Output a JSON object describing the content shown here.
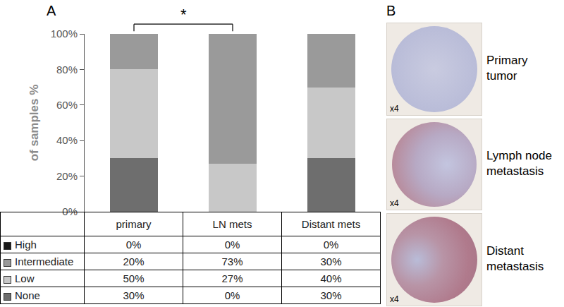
{
  "chart_data": {
    "type": "bar",
    "stacked": true,
    "categories": [
      "primary",
      "LN mets",
      "Distant mets"
    ],
    "series": [
      {
        "name": "High",
        "color": "#1a1a1a",
        "values": [
          0,
          0,
          0
        ],
        "value_labels": [
          "0%",
          "0%",
          "0%"
        ]
      },
      {
        "name": "Intermediate",
        "color": "#9a9a9a",
        "values": [
          20,
          73,
          30
        ],
        "value_labels": [
          "20%",
          "73%",
          "30%"
        ]
      },
      {
        "name": "Low",
        "color": "#c8c8c8",
        "values": [
          50,
          27,
          40
        ],
        "value_labels": [
          "50%",
          "27%",
          "40%"
        ]
      },
      {
        "name": "None",
        "color": "#6e6e6e",
        "values": [
          30,
          0,
          30
        ],
        "value_labels": [
          "30%",
          "0%",
          "30%"
        ]
      }
    ],
    "y_label": "of samples %",
    "ylim": [
      0,
      100
    ],
    "yticks": [
      {
        "value": 0,
        "label": "0%"
      },
      {
        "value": 20,
        "label": "20%"
      },
      {
        "value": 40,
        "label": "40%"
      },
      {
        "value": 60,
        "label": "60%"
      },
      {
        "value": 80,
        "label": "80%"
      },
      {
        "value": 100,
        "label": "100%"
      }
    ],
    "tick_labels": "y",
    "grid": false,
    "annotations": [
      {
        "text": "*",
        "from": "primary",
        "to": "LN mets"
      }
    ],
    "panel_label": "A"
  },
  "panel_b": {
    "panel_label": "B",
    "images": [
      {
        "label": "Primary tumor",
        "magnification": "x4"
      },
      {
        "label": "Lymph node metastasis",
        "magnification": "x4"
      },
      {
        "label": "Distant metastasis",
        "magnification": "x4"
      }
    ]
  }
}
